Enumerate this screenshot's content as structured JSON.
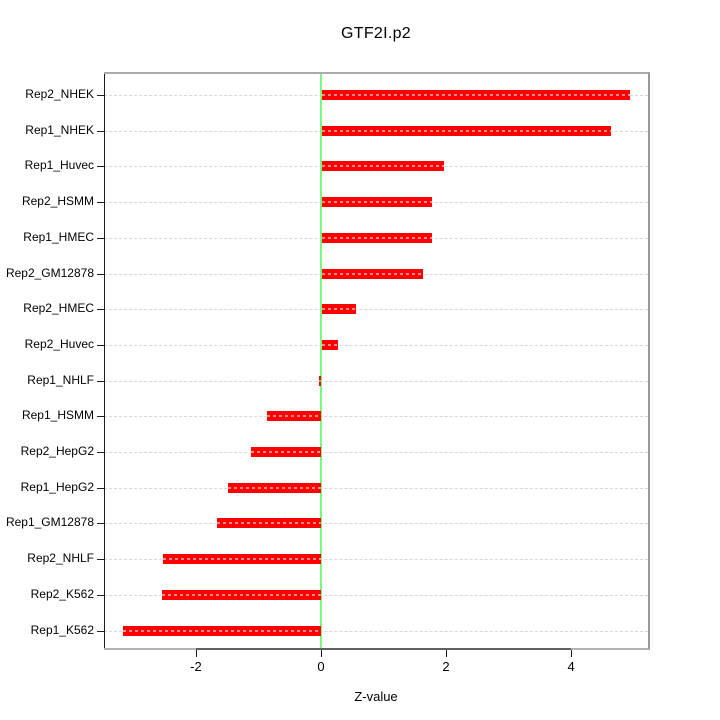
{
  "chart_data": {
    "type": "bar",
    "orientation": "horizontal",
    "title": "GTF2I.p2",
    "xlabel": "Z-value",
    "categories": [
      "Rep2_NHEK",
      "Rep1_NHEK",
      "Rep1_Huvec",
      "Rep2_HSMM",
      "Rep1_HMEC",
      "Rep2_GM12878",
      "Rep2_HMEC",
      "Rep2_Huvec",
      "Rep1_NHLF",
      "Rep1_HSMM",
      "Rep2_HepG2",
      "Rep1_HepG2",
      "Rep1_GM12878",
      "Rep2_NHLF",
      "Rep2_K562",
      "Rep1_K562"
    ],
    "values": [
      4.92,
      4.62,
      1.95,
      1.76,
      1.76,
      1.61,
      0.54,
      0.25,
      -0.03,
      -0.86,
      -1.12,
      -1.49,
      -1.66,
      -2.52,
      -2.54,
      -3.16
    ],
    "x_ticks": [
      {
        "label": "-2",
        "value": -2
      },
      {
        "label": "0",
        "value": 0
      },
      {
        "label": "2",
        "value": 2
      },
      {
        "label": "4",
        "value": 4
      }
    ],
    "xlim": [
      -3.47,
      5.23
    ],
    "grid": "horizontal-dashed-per-category",
    "legend": "none",
    "bar_color": "#ff0000",
    "zero_line_color": "#7df77d",
    "grid_color": "#d7d7d7"
  }
}
